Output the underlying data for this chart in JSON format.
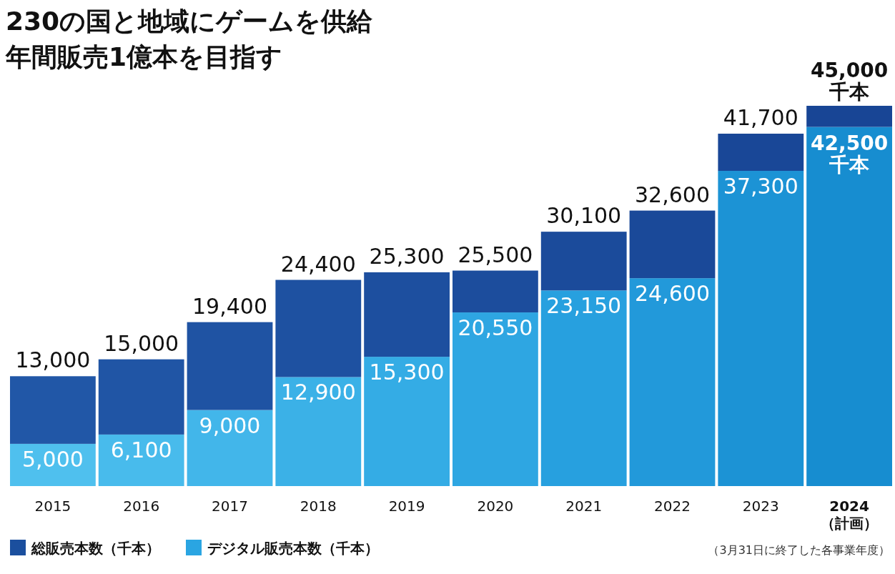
{
  "chart_data": {
    "type": "bar",
    "stacked": true,
    "title": "230の国と地域にゲームを供給",
    "subtitle": "年間販売1億本を目指す",
    "categories": [
      "2015",
      "2016",
      "2017",
      "2018",
      "2019",
      "2020",
      "2021",
      "2022",
      "2023",
      "2024\n（計画）"
    ],
    "series": [
      {
        "name": "デジタル販売本数（千本）",
        "color": "#2aa5e2",
        "colors": [
          "#4fc0ee",
          "#48bbec",
          "#42b6ea",
          "#3bb1e7",
          "#34ace5",
          "#2ea6e2",
          "#27a0df",
          "#2299da",
          "#1c93d5",
          "#178dd0"
        ],
        "values": [
          5000,
          6100,
          9000,
          12900,
          15300,
          20550,
          23150,
          24600,
          37300,
          42500
        ],
        "value_labels": [
          "5,000",
          "6,100",
          "9,000",
          "12,900",
          "15,300",
          "20,550",
          "23,150",
          "24,600",
          "37,300",
          "42,500\n千本"
        ]
      },
      {
        "name": "総販売本数（千本）",
        "color": "#1b4f9e",
        "colors": [
          "#2157a7",
          "#2055a5",
          "#1f53a3",
          "#1e51a1",
          "#1d4f9f",
          "#1c4d9d",
          "#1b4b9b",
          "#1a4999",
          "#194797",
          "#184595"
        ],
        "values": [
          8000,
          8900,
          10400,
          11500,
          10000,
          4950,
          6950,
          8000,
          4400,
          2500
        ]
      }
    ],
    "totals": [
      "13,000",
      "15,000",
      "19,400",
      "24,400",
      "25,300",
      "25,500",
      "30,100",
      "32,600",
      "41,700",
      "45,000\n千本"
    ],
    "legend": "bottom left",
    "annotations": [
      "（3月31日に終了した各事業年度）"
    ]
  }
}
